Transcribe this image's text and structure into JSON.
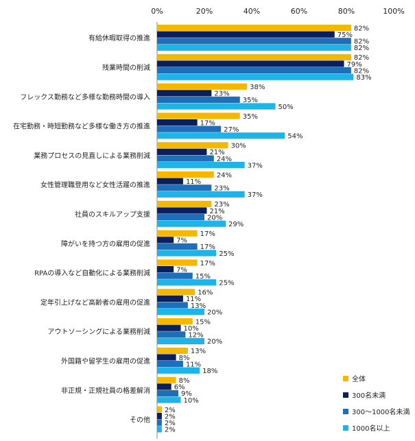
{
  "chart_data": {
    "type": "bar",
    "orientation": "horizontal",
    "xlim": [
      0,
      100
    ],
    "x_ticks": [
      "0%",
      "20%",
      "40%",
      "60%",
      "80%",
      "100%"
    ],
    "grid": false,
    "legend_position": "bottom-right",
    "categories": [
      "有給休暇取得の推進",
      "残業時間の削減",
      "フレックス勤務など多様な勤務時間の導入",
      "在宅勤務・時短勤務など多様な働き方の推進",
      "業務プロセスの見直しによる業務削減",
      "女性管理職登用など女性活躍の推進",
      "社員のスキルアップ支援",
      "障がいを持つ方の雇用の促進",
      "RPAの導入など自動化による業務削減",
      "定年引上げなど高齢者の雇用の促進",
      "アウトソーシングによる業務削減",
      "外国籍や留学生の雇用の促進",
      "非正規・正規社員の格差解消",
      "その他"
    ],
    "series": [
      {
        "name": "全体",
        "color": "#F5B800",
        "values": [
          82,
          82,
          38,
          35,
          30,
          24,
          23,
          17,
          17,
          16,
          15,
          13,
          8,
          2
        ]
      },
      {
        "name": "300名未満",
        "color": "#0B1F5C",
        "values": [
          75,
          79,
          23,
          17,
          21,
          11,
          21,
          7,
          7,
          11,
          10,
          8,
          6,
          2
        ]
      },
      {
        "name": "300～1000名未満",
        "color": "#1F6FB8",
        "values": [
          82,
          82,
          35,
          27,
          24,
          23,
          20,
          17,
          15,
          13,
          12,
          11,
          9,
          2
        ]
      },
      {
        "name": "1000名以上",
        "color": "#1EB4EA",
        "values": [
          82,
          83,
          50,
          54,
          37,
          37,
          29,
          25,
          25,
          20,
          20,
          18,
          10,
          2
        ]
      }
    ]
  }
}
